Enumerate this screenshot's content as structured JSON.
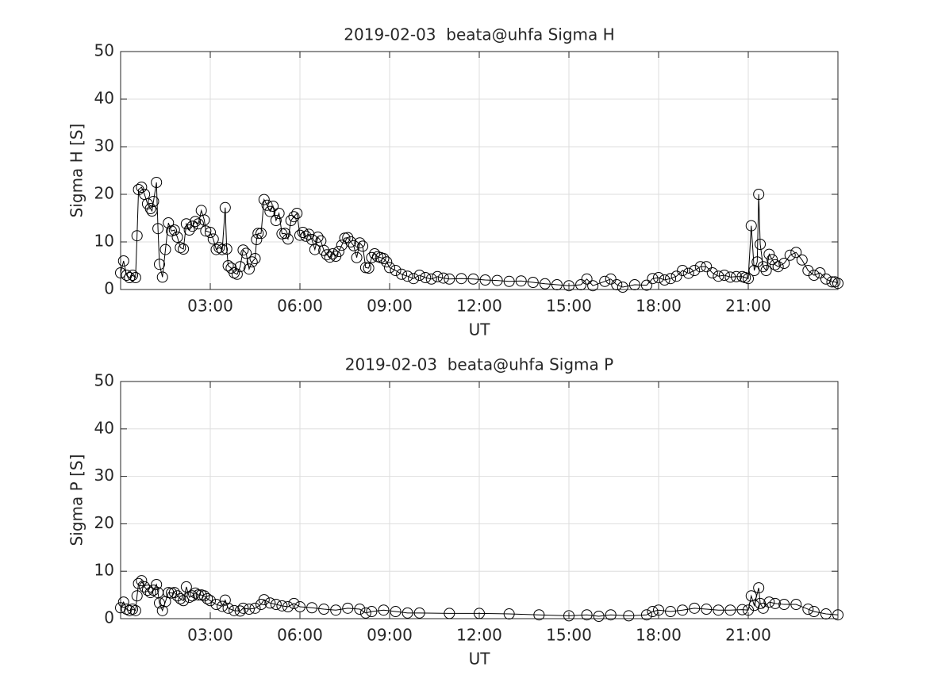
{
  "chart_data": [
    {
      "type": "line",
      "title": "2019-02-03  beata@uhfa Sigma H",
      "xlabel": "UT",
      "ylabel": "Sigma H [S]",
      "x": [
        0,
        0.1,
        0.2,
        0.3,
        0.4,
        0.5,
        0.55,
        0.6,
        0.7,
        0.8,
        0.9,
        1.0,
        1.05,
        1.1,
        1.2,
        1.25,
        1.3,
        1.4,
        1.5,
        1.6,
        1.7,
        1.8,
        1.9,
        2.0,
        2.1,
        2.2,
        2.3,
        2.4,
        2.5,
        2.6,
        2.7,
        2.8,
        2.85,
        3.0,
        3.1,
        3.2,
        3.3,
        3.4,
        3.5,
        3.55,
        3.6,
        3.7,
        3.8,
        3.9,
        4.0,
        4.1,
        4.2,
        4.3,
        4.4,
        4.5,
        4.55,
        4.6,
        4.7,
        4.8,
        4.9,
        5.0,
        5.1,
        5.2,
        5.3,
        5.4,
        5.5,
        5.6,
        5.7,
        5.8,
        5.9,
        6.0,
        6.1,
        6.2,
        6.3,
        6.4,
        6.5,
        6.6,
        6.7,
        6.8,
        6.9,
        7.0,
        7.1,
        7.2,
        7.3,
        7.4,
        7.5,
        7.6,
        7.7,
        7.8,
        7.9,
        8.0,
        8.1,
        8.2,
        8.3,
        8.4,
        8.5,
        8.6,
        8.7,
        8.8,
        8.9,
        9.0,
        9.2,
        9.4,
        9.6,
        9.8,
        10.0,
        10.2,
        10.4,
        10.6,
        10.8,
        11.0,
        11.4,
        11.8,
        12.2,
        12.6,
        13.0,
        13.4,
        13.8,
        14.2,
        14.6,
        15.0,
        15.4,
        15.6,
        15.8,
        16.2,
        16.4,
        16.6,
        16.8,
        17.2,
        17.6,
        17.8,
        18.0,
        18.2,
        18.4,
        18.6,
        18.8,
        19.0,
        19.2,
        19.4,
        19.6,
        19.8,
        20.0,
        20.2,
        20.4,
        20.6,
        20.8,
        20.9,
        21.0,
        21.1,
        21.2,
        21.3,
        21.35,
        21.4,
        21.5,
        21.6,
        21.7,
        21.8,
        21.9,
        22.0,
        22.2,
        22.4,
        22.6,
        22.8,
        23.0,
        23.2,
        23.4,
        23.6,
        23.8,
        23.9,
        24.0
      ],
      "values": [
        3.5,
        6,
        3,
        2.5,
        3,
        2.5,
        11.3,
        21,
        21.5,
        20,
        18,
        17,
        16.5,
        18.5,
        22.5,
        12.8,
        5.3,
        2.6,
        8.4,
        14,
        12.3,
        12.5,
        11,
        8.8,
        8.5,
        13.8,
        12.5,
        13.3,
        14.3,
        13.8,
        16.6,
        14.6,
        12.3,
        12,
        10.6,
        8.4,
        8.8,
        8.4,
        17.2,
        8.5,
        5,
        4.5,
        3.5,
        3.2,
        4.8,
        8.3,
        7.6,
        4.3,
        5.8,
        6.5,
        10.5,
        11.8,
        11.8,
        18.9,
        17.7,
        16.4,
        17.5,
        14.5,
        16,
        11.7,
        11.8,
        10.6,
        14.5,
        15.3,
        16,
        11.4,
        12,
        11.2,
        11.6,
        10.5,
        8.4,
        11,
        10.2,
        8.2,
        7.3,
        6.8,
        7.5,
        7,
        8,
        9.3,
        10.8,
        10.9,
        10,
        9.2,
        6.7,
        9.8,
        9.1,
        4.6,
        4.5,
        6.7,
        7.5,
        6.9,
        6.7,
        6.5,
        5.8,
        4.6,
        4,
        3.2,
        2.8,
        2.3,
        3,
        2.5,
        2.2,
        2.7,
        2.4,
        2.2,
        2.3,
        2.2,
        2,
        1.9,
        1.7,
        1.8,
        1.5,
        1.2,
        1,
        0.8,
        1,
        2.2,
        0.8,
        1.7,
        2.2,
        1,
        0.5,
        1,
        0.9,
        2.3,
        2.5,
        2,
        2.3,
        2.8,
        4,
        3.4,
        4,
        4.8,
        4.8,
        3.5,
        2.8,
        3,
        2.6,
        2.7,
        2.7,
        2.5,
        2.3,
        13.4,
        4,
        5.8,
        20,
        9.5,
        4.8,
        4,
        7.4,
        6.3,
        5.2,
        4.8,
        5.5,
        7.2,
        7.8,
        6.2,
        4,
        3,
        3.5,
        2.2,
        1.6,
        1.6,
        1.3
      ],
      "color": "#000000",
      "marker": "circle",
      "xlim": [
        0,
        24
      ],
      "xticks": [
        {
          "value": 3,
          "label": "03:00"
        },
        {
          "value": 6,
          "label": "06:00"
        },
        {
          "value": 9,
          "label": "09:00"
        },
        {
          "value": 12,
          "label": "12:00"
        },
        {
          "value": 15,
          "label": "15:00"
        },
        {
          "value": 18,
          "label": "18:00"
        },
        {
          "value": 21,
          "label": "21:00"
        }
      ],
      "ylim": [
        0,
        50
      ],
      "yticks": [
        0,
        10,
        20,
        30,
        40,
        50
      ],
      "grid": true
    },
    {
      "type": "line",
      "title": "2019-02-03  beata@uhfa Sigma P",
      "xlabel": "UT",
      "ylabel": "Sigma P [S]",
      "x": [
        0,
        0.1,
        0.2,
        0.3,
        0.4,
        0.5,
        0.55,
        0.6,
        0.7,
        0.8,
        0.9,
        1.0,
        1.1,
        1.2,
        1.25,
        1.3,
        1.4,
        1.5,
        1.6,
        1.7,
        1.8,
        1.9,
        2.0,
        2.1,
        2.2,
        2.3,
        2.4,
        2.5,
        2.6,
        2.7,
        2.8,
        2.9,
        3.0,
        3.2,
        3.4,
        3.5,
        3.6,
        3.8,
        4.0,
        4.1,
        4.3,
        4.5,
        4.7,
        4.8,
        5.0,
        5.2,
        5.4,
        5.6,
        5.8,
        6.0,
        6.4,
        6.8,
        7.2,
        7.6,
        8.0,
        8.2,
        8.4,
        8.8,
        9.2,
        9.6,
        10,
        11,
        12,
        13,
        14,
        15,
        15.6,
        16,
        16.4,
        17,
        17.6,
        17.8,
        18,
        18.4,
        18.8,
        19.2,
        19.6,
        20,
        20.4,
        20.8,
        21,
        21.1,
        21.2,
        21.35,
        21.4,
        21.5,
        21.7,
        21.9,
        22.2,
        22.6,
        23,
        23.2,
        23.6,
        24
      ],
      "values": [
        2.3,
        3.5,
        2,
        1.7,
        2,
        1.7,
        4.8,
        7.4,
        8,
        6.7,
        6,
        5.5,
        6,
        7.2,
        5.5,
        3.3,
        1.7,
        3.6,
        5.5,
        5.4,
        5.5,
        4.8,
        4.2,
        3.8,
        6.7,
        4.5,
        4.8,
        5.4,
        5,
        5,
        4.8,
        4.2,
        3.8,
        3,
        2.6,
        3.9,
        2.2,
        1.7,
        1.6,
        2.2,
        2,
        2.2,
        3,
        4,
        3.3,
        3,
        2.7,
        2.5,
        3.2,
        2.5,
        2.3,
        2,
        1.8,
        2.2,
        2,
        1.2,
        1.5,
        1.8,
        1.5,
        1.2,
        1.2,
        1.1,
        1.1,
        1,
        0.8,
        0.6,
        0.8,
        0.5,
        0.8,
        0.6,
        0.8,
        1.5,
        1.8,
        1.5,
        1.8,
        2.2,
        2,
        1.8,
        1.8,
        1.9,
        1.8,
        4.8,
        2.8,
        6.5,
        3.2,
        2.2,
        3.5,
        3.2,
        3,
        3,
        2,
        1.5,
        1,
        0.8
      ],
      "color": "#000000",
      "marker": "circle",
      "xlim": [
        0,
        24
      ],
      "xticks": [
        {
          "value": 3,
          "label": "03:00"
        },
        {
          "value": 6,
          "label": "06:00"
        },
        {
          "value": 9,
          "label": "09:00"
        },
        {
          "value": 12,
          "label": "12:00"
        },
        {
          "value": 15,
          "label": "15:00"
        },
        {
          "value": 18,
          "label": "18:00"
        },
        {
          "value": 21,
          "label": "21:00"
        }
      ],
      "ylim": [
        0,
        50
      ],
      "yticks": [
        0,
        10,
        20,
        30,
        40,
        50
      ],
      "grid": true
    }
  ]
}
